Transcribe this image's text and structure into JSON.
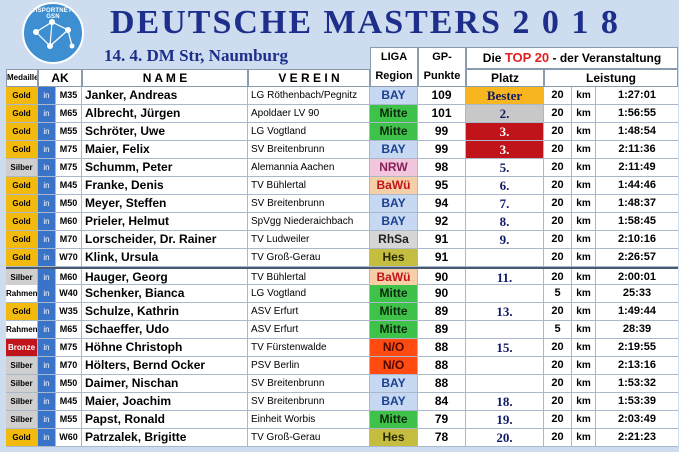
{
  "title": "DEUTSCHE MASTERS 2 0 1 8",
  "subtitle": "14. 4. DM Str, Naumburg",
  "logo_text": "GEHSPORTNETZWERK GSN",
  "headers": {
    "medaille": "Medaille",
    "ak": "AK",
    "name": "N A M E",
    "verein": "V E R E I N",
    "liga_line1": "LIGA",
    "liga_line2": "Region",
    "gp_line1": "GP-",
    "gp_line2": "Punkte",
    "top20_pre": "Die",
    "top20_hl": "TOP 20",
    "top20_post": "- der Veranstaltung",
    "platz": "Platz",
    "leistung": "Leistung"
  },
  "colors": {
    "gold": "#f2b90f",
    "silber": "#cfcfcf",
    "bronze": "#c0141a",
    "rahmen": "#ffffff",
    "bay": "#c7d8f3",
    "mitte": "#3ec24a",
    "nrw": "#f2c6dc",
    "bawu": "#f7cfa6",
    "rhsa": "#d6d6d6",
    "hes": "#c4bd3f",
    "no": "#ff4a12",
    "bester": "#f7b51f",
    "place2": "#c8c8c8",
    "place3": "#c0141a"
  },
  "rows": [
    {
      "medaille": "Gold",
      "in": "in",
      "ak": "M35",
      "name": "Janker, Andreas",
      "verein": "LG Röthenbach/Pegnitz",
      "liga": "BAY",
      "gp": "109",
      "platz": "Bester",
      "km_n": "20",
      "km": "km",
      "time": "1:27:01"
    },
    {
      "medaille": "Gold",
      "in": "in",
      "ak": "M65",
      "name": "Albrecht, Jürgen",
      "verein": "Apoldaer LV 90",
      "liga": "Mitte",
      "gp": "101",
      "platz": "2.",
      "km_n": "20",
      "km": "km",
      "time": "1:56:55"
    },
    {
      "medaille": "Gold",
      "in": "in",
      "ak": "M55",
      "name": "Schröter, Uwe",
      "verein": "LG Vogtland",
      "liga": "Mitte",
      "gp": "99",
      "platz": "3.",
      "km_n": "20",
      "km": "km",
      "time": "1:48:54"
    },
    {
      "medaille": "Gold",
      "in": "in",
      "ak": "M75",
      "name": "Maier, Felix",
      "verein": "SV Breitenbrunn",
      "liga": "BAY",
      "gp": "99",
      "platz": "3.",
      "km_n": "20",
      "km": "km",
      "time": "2:11:36"
    },
    {
      "medaille": "Silber",
      "in": "in",
      "ak": "M75",
      "name": "Schumm, Peter",
      "verein": "Alemannia Aachen",
      "liga": "NRW",
      "gp": "98",
      "platz": "5.",
      "km_n": "20",
      "km": "km",
      "time": "2:11:49"
    },
    {
      "medaille": "Gold",
      "in": "in",
      "ak": "M45",
      "name": "Franke, Denis",
      "verein": "TV Bühlertal",
      "liga": "BaWü",
      "gp": "95",
      "platz": "6.",
      "km_n": "20",
      "km": "km",
      "time": "1:44:46"
    },
    {
      "medaille": "Gold",
      "in": "in",
      "ak": "M50",
      "name": "Meyer, Steffen",
      "verein": "SV Breitenbrunn",
      "liga": "BAY",
      "gp": "94",
      "platz": "7.",
      "km_n": "20",
      "km": "km",
      "time": "1:48:37"
    },
    {
      "medaille": "Gold",
      "in": "in",
      "ak": "M60",
      "name": "Prieler, Helmut",
      "verein": "SpVgg Niederaichbach",
      "liga": "BAY",
      "gp": "92",
      "platz": "8.",
      "km_n": "20",
      "km": "km",
      "time": "1:58:45"
    },
    {
      "medaille": "Gold",
      "in": "in",
      "ak": "M70",
      "name": "Lorscheider, Dr. Rainer",
      "verein": "TV Ludweiler",
      "liga": "RhSa",
      "gp": "91",
      "platz": "9.",
      "km_n": "20",
      "km": "km",
      "time": "2:10:16"
    },
    {
      "medaille": "Gold",
      "in": "in",
      "ak": "W70",
      "name": "Klink, Ursula",
      "verein": "TV Groß-Gerau",
      "liga": "Hes",
      "gp": "91",
      "platz": "",
      "km_n": "20",
      "km": "km",
      "time": "2:26:57"
    },
    {
      "medaille": "Silber",
      "in": "in",
      "ak": "M60",
      "name": "Hauger, Georg",
      "verein": "TV Bühlertal",
      "liga": "BaWü",
      "gp": "90",
      "platz": "11.",
      "km_n": "20",
      "km": "km",
      "time": "2:00:01"
    },
    {
      "medaille": "Rahmen",
      "in": "in",
      "ak": "W40",
      "name": "Schenker, Bianca",
      "verein": "LG Vogtland",
      "liga": "Mitte",
      "gp": "90",
      "platz": "",
      "km_n": "5",
      "km": "km",
      "time": "25:33"
    },
    {
      "medaille": "Gold",
      "in": "in",
      "ak": "W35",
      "name": "Schulze, Kathrin",
      "verein": "ASV Erfurt",
      "liga": "Mitte",
      "gp": "89",
      "platz": "13.",
      "km_n": "20",
      "km": "km",
      "time": "1:49:44"
    },
    {
      "medaille": "Rahmen",
      "in": "in",
      "ak": "M65",
      "name": "Schaeffer, Udo",
      "verein": "ASV Erfurt",
      "liga": "Mitte",
      "gp": "89",
      "platz": "",
      "km_n": "5",
      "km": "km",
      "time": "28:39"
    },
    {
      "medaille": "Bronze",
      "in": "in",
      "ak": "M75",
      "name": "Höhne Christoph",
      "verein": "TV Fürstenwalde",
      "liga": "N/O",
      "gp": "88",
      "platz": "15.",
      "km_n": "20",
      "km": "km",
      "time": "2:19:55"
    },
    {
      "medaille": "Silber",
      "in": "in",
      "ak": "M70",
      "name": "Hölters, Bernd Ocker",
      "verein": "PSV Berlin",
      "liga": "N/O",
      "gp": "88",
      "platz": "",
      "km_n": "20",
      "km": "km",
      "time": "2:13:16"
    },
    {
      "medaille": "Silber",
      "in": "in",
      "ak": "M50",
      "name": "Daimer, Nischan",
      "verein": "SV Breitenbrunn",
      "liga": "BAY",
      "gp": "88",
      "platz": "",
      "km_n": "20",
      "km": "km",
      "time": "1:53:32"
    },
    {
      "medaille": "Silber",
      "in": "in",
      "ak": "M45",
      "name": "Maier, Joachim",
      "verein": "SV Breitenbrunn",
      "liga": "BAY",
      "gp": "84",
      "platz": "18.",
      "km_n": "20",
      "km": "km",
      "time": "1:53:39"
    },
    {
      "medaille": "Silber",
      "in": "in",
      "ak": "M55",
      "name": "Papst, Ronald",
      "verein": "Einheit Worbis",
      "liga": "Mitte",
      "gp": "79",
      "platz": "19.",
      "km_n": "20",
      "km": "km",
      "time": "2:03:49"
    },
    {
      "medaille": "Gold",
      "in": "in",
      "ak": "W60",
      "name": "Patrzalek, Brigitte",
      "verein": "TV Groß-Gerau",
      "liga": "Hes",
      "gp": "78",
      "platz": "20.",
      "km_n": "20",
      "km": "km",
      "time": "2:21:23"
    }
  ]
}
